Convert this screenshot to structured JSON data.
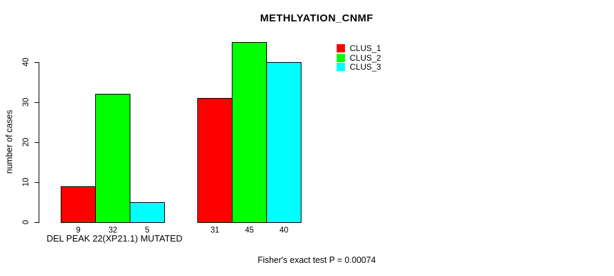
{
  "chart_data": {
    "type": "bar",
    "title": "METHLYATION_CNMF",
    "ylabel": "number of cases",
    "xlabel": "DEL PEAK 22(XP21.1) MUTATED",
    "ylim": [
      0,
      45
    ],
    "yticks": [
      0,
      10,
      20,
      30,
      40
    ],
    "categories": [
      "DEL PEAK 22(XP21.1) MUTATED",
      ""
    ],
    "series": [
      {
        "name": "CLUS_1",
        "color": "#ff0000",
        "values": [
          9,
          31
        ]
      },
      {
        "name": "CLUS_2",
        "color": "#00ff00",
        "values": [
          32,
          45
        ]
      },
      {
        "name": "CLUS_3",
        "color": "#00ffff",
        "values": [
          5,
          40
        ]
      }
    ],
    "bar_value_labels": [
      [
        9,
        32,
        5
      ],
      [
        31,
        45,
        40
      ]
    ],
    "annotation": "Fisher's exact test P = 0.00074",
    "legend_position": "top-right",
    "grid": false,
    "colors": {
      "background": "#ffffff",
      "axis": "#000000",
      "text": "#000000",
      "bar_border": "#000000"
    }
  }
}
